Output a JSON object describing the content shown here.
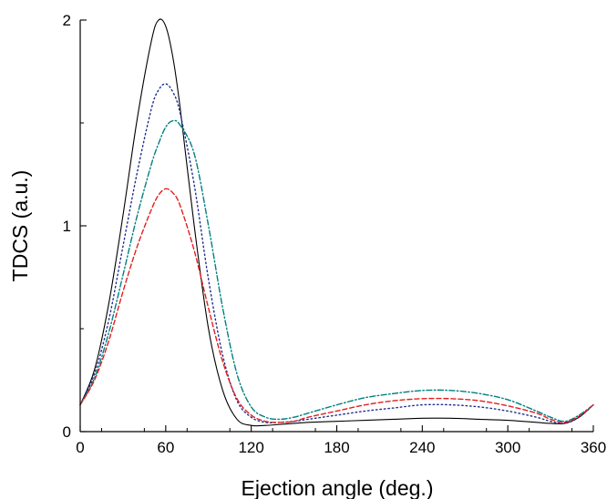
{
  "chart_data": {
    "type": "line",
    "title": "",
    "xlabel": "Ejection angle (deg.)",
    "ylabel": "TDCS (a.u.)",
    "xlim": [
      0,
      360
    ],
    "ylim": [
      0,
      2
    ],
    "x_ticks": [
      0,
      60,
      120,
      180,
      240,
      300,
      360
    ],
    "y_ticks": [
      0,
      1,
      2
    ],
    "x_tick_labels": [
      "0",
      "60",
      "120",
      "180",
      "240",
      "300",
      "360"
    ],
    "y_tick_labels": [
      "0",
      "1",
      "2"
    ],
    "grid": false,
    "legend": "none",
    "x": [
      0,
      10,
      20,
      30,
      40,
      50,
      55,
      60,
      65,
      70,
      80,
      90,
      100,
      110,
      120,
      130,
      140,
      150,
      160,
      180,
      200,
      220,
      240,
      260,
      280,
      300,
      320,
      330,
      340,
      350,
      360
    ],
    "series": [
      {
        "color": "#000000",
        "style": "solid",
        "values": [
          0.13,
          0.3,
          0.62,
          1.05,
          1.52,
          1.9,
          2.0,
          1.97,
          1.82,
          1.58,
          1.0,
          0.5,
          0.2,
          0.06,
          0.03,
          0.03,
          0.035,
          0.04,
          0.045,
          0.05,
          0.055,
          0.06,
          0.065,
          0.065,
          0.06,
          0.055,
          0.045,
          0.04,
          0.04,
          0.07,
          0.13
        ]
      },
      {
        "color": "#1f2f8f",
        "style": "dotted",
        "values": [
          0.13,
          0.28,
          0.54,
          0.9,
          1.26,
          1.57,
          1.66,
          1.69,
          1.65,
          1.55,
          1.2,
          0.74,
          0.37,
          0.15,
          0.07,
          0.045,
          0.045,
          0.05,
          0.06,
          0.08,
          0.1,
          0.115,
          0.13,
          0.13,
          0.12,
          0.1,
          0.07,
          0.05,
          0.04,
          0.07,
          0.13
        ]
      },
      {
        "color": "#008080",
        "style": "dash-dot",
        "values": [
          0.13,
          0.26,
          0.48,
          0.76,
          1.05,
          1.3,
          1.4,
          1.48,
          1.51,
          1.49,
          1.35,
          1.0,
          0.6,
          0.28,
          0.12,
          0.07,
          0.06,
          0.07,
          0.09,
          0.13,
          0.165,
          0.185,
          0.2,
          0.2,
          0.185,
          0.155,
          0.1,
          0.07,
          0.05,
          0.08,
          0.13
        ]
      },
      {
        "color": "#e02020",
        "style": "dashed",
        "values": [
          0.13,
          0.25,
          0.44,
          0.68,
          0.9,
          1.08,
          1.15,
          1.18,
          1.16,
          1.1,
          0.88,
          0.6,
          0.34,
          0.16,
          0.08,
          0.05,
          0.045,
          0.05,
          0.07,
          0.1,
          0.13,
          0.15,
          0.16,
          0.16,
          0.15,
          0.125,
          0.09,
          0.06,
          0.045,
          0.075,
          0.13
        ]
      }
    ]
  }
}
